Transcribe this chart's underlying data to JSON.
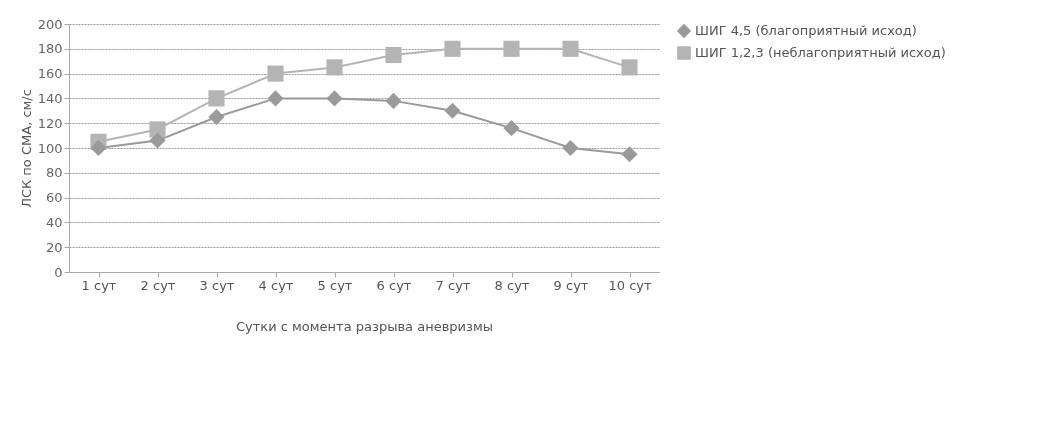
{
  "chart_data": {
    "type": "line",
    "xlabel": "Сутки с момента разрыва аневризмы",
    "ylabel": "ЛСК по СМА, см/с",
    "categories": [
      "1 сут",
      "2 сут",
      "3 сут",
      "4 сут",
      "5 сут",
      "6 сут",
      "7 сут",
      "8 сут",
      "9 сут",
      "10 сут"
    ],
    "series": [
      {
        "name": "ШИГ 4,5 (благоприятный исход)",
        "color": "#9a9a9a",
        "marker": "diamond",
        "values": [
          100,
          106,
          125,
          140,
          140,
          138,
          130,
          116,
          100,
          95
        ]
      },
      {
        "name": "ШИГ 1,2,3 (неблагоприятный исход)",
        "color": "#b4b4b4",
        "marker": "square",
        "values": [
          105,
          115,
          140,
          160,
          165,
          175,
          180,
          180,
          180,
          165
        ]
      }
    ],
    "ylim": [
      0,
      200
    ],
    "yticks": [
      0,
      20,
      40,
      60,
      80,
      100,
      120,
      140,
      160,
      180,
      200
    ],
    "grid": "y",
    "legend": "right"
  }
}
